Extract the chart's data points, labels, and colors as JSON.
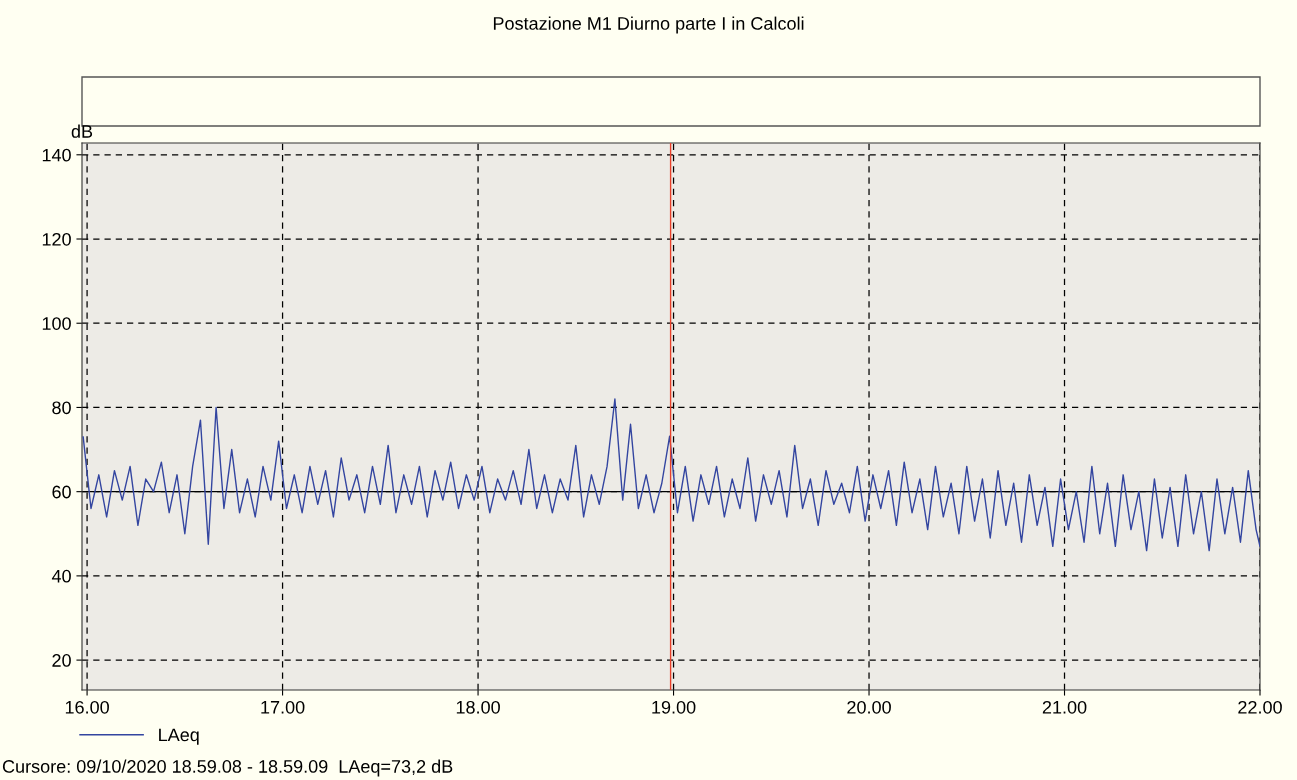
{
  "chart_data": {
    "type": "line",
    "title": "Postazione M1 Diurno parte I in Calcoli",
    "ylabel": "dB",
    "x": [
      15.98,
      16.02,
      16.06,
      16.1,
      16.14,
      16.18,
      16.22,
      16.26,
      16.3,
      16.34,
      16.38,
      16.42,
      16.46,
      16.5,
      16.54,
      16.58,
      16.62,
      16.66,
      16.7,
      16.74,
      16.78,
      16.82,
      16.86,
      16.9,
      16.94,
      16.98,
      17.02,
      17.06,
      17.1,
      17.14,
      17.18,
      17.22,
      17.26,
      17.3,
      17.34,
      17.38,
      17.42,
      17.46,
      17.5,
      17.54,
      17.58,
      17.62,
      17.66,
      17.7,
      17.74,
      17.78,
      17.82,
      17.86,
      17.9,
      17.94,
      17.98,
      18.02,
      18.06,
      18.1,
      18.14,
      18.18,
      18.22,
      18.26,
      18.3,
      18.34,
      18.38,
      18.42,
      18.46,
      18.5,
      18.54,
      18.58,
      18.62,
      18.66,
      18.7,
      18.74,
      18.78,
      18.82,
      18.86,
      18.9,
      18.94,
      18.98,
      19.02,
      19.06,
      19.1,
      19.14,
      19.18,
      19.22,
      19.26,
      19.3,
      19.34,
      19.38,
      19.42,
      19.46,
      19.5,
      19.54,
      19.58,
      19.62,
      19.66,
      19.7,
      19.74,
      19.78,
      19.82,
      19.86,
      19.9,
      19.94,
      19.98,
      20.02,
      20.06,
      20.1,
      20.14,
      20.18,
      20.22,
      20.26,
      20.3,
      20.34,
      20.38,
      20.42,
      20.46,
      20.5,
      20.54,
      20.58,
      20.62,
      20.66,
      20.7,
      20.74,
      20.78,
      20.82,
      20.86,
      20.9,
      20.94,
      20.98,
      21.02,
      21.06,
      21.1,
      21.14,
      21.18,
      21.22,
      21.26,
      21.3,
      21.34,
      21.38,
      21.42,
      21.46,
      21.5,
      21.54,
      21.58,
      21.62,
      21.66,
      21.7,
      21.74,
      21.78,
      21.82,
      21.86,
      21.9,
      21.94,
      21.98,
      22.0
    ],
    "series": [
      {
        "name": "LAeq",
        "color": "#3345a0",
        "values": [
          73,
          56,
          64,
          54,
          65,
          58,
          66,
          52,
          63,
          60,
          67,
          55,
          64,
          50,
          66,
          77,
          47.5,
          80,
          56,
          70,
          55,
          63,
          54,
          66,
          58,
          72,
          56,
          64,
          55,
          66,
          57,
          65,
          54,
          68,
          58,
          64,
          55,
          66,
          57,
          71,
          55,
          64,
          57,
          66,
          54,
          65,
          58,
          67,
          56,
          64,
          58,
          66,
          55,
          63,
          58,
          65,
          57,
          70,
          56,
          64,
          55,
          63,
          58,
          71,
          54,
          64,
          57,
          66,
          82,
          58,
          76,
          56,
          64,
          55,
          62,
          73.2,
          55,
          66,
          53,
          64,
          57,
          66,
          54,
          63,
          56,
          68,
          53,
          64,
          57,
          65,
          54,
          71,
          56,
          63,
          52,
          65,
          57,
          62,
          55,
          66,
          53,
          64,
          56,
          65,
          52,
          67,
          55,
          63,
          51,
          66,
          54,
          62,
          50,
          66,
          53,
          63,
          49,
          65,
          52,
          62,
          48,
          64,
          52,
          61,
          47,
          63,
          51,
          60,
          48,
          66,
          50,
          62,
          47,
          64,
          51,
          60,
          46,
          63,
          49,
          61,
          47,
          64,
          50,
          60,
          46,
          63,
          50,
          61,
          48,
          65,
          51,
          47
        ]
      }
    ],
    "xlim": [
      15.974,
      22.0
    ],
    "xticks": [
      {
        "value": 16,
        "label": "16.00"
      },
      {
        "value": 17,
        "label": "17.00"
      },
      {
        "value": 18,
        "label": "18.00"
      },
      {
        "value": 19,
        "label": "19.00"
      },
      {
        "value": 20,
        "label": "20.00"
      },
      {
        "value": 21,
        "label": "21.00"
      },
      {
        "value": 22,
        "label": "22.00"
      }
    ],
    "ylim": [
      12.9,
      142.8
    ],
    "yticks": [
      20,
      40,
      60,
      80,
      100,
      120,
      140
    ],
    "grid": true,
    "legend": "bottom left",
    "marker": "none",
    "line_style": "solid",
    "ref_lines": [
      {
        "axis": "x",
        "value": 18.985,
        "color": "#e8402a",
        "line_style": "solid"
      },
      {
        "axis": "y",
        "value": 60,
        "color": "#000000",
        "line_style": "solid"
      }
    ],
    "annotations": [
      "Cursore: 09/10/2020 18.59.08 - 18.59.09  LAeq=73,2 dB"
    ]
  }
}
